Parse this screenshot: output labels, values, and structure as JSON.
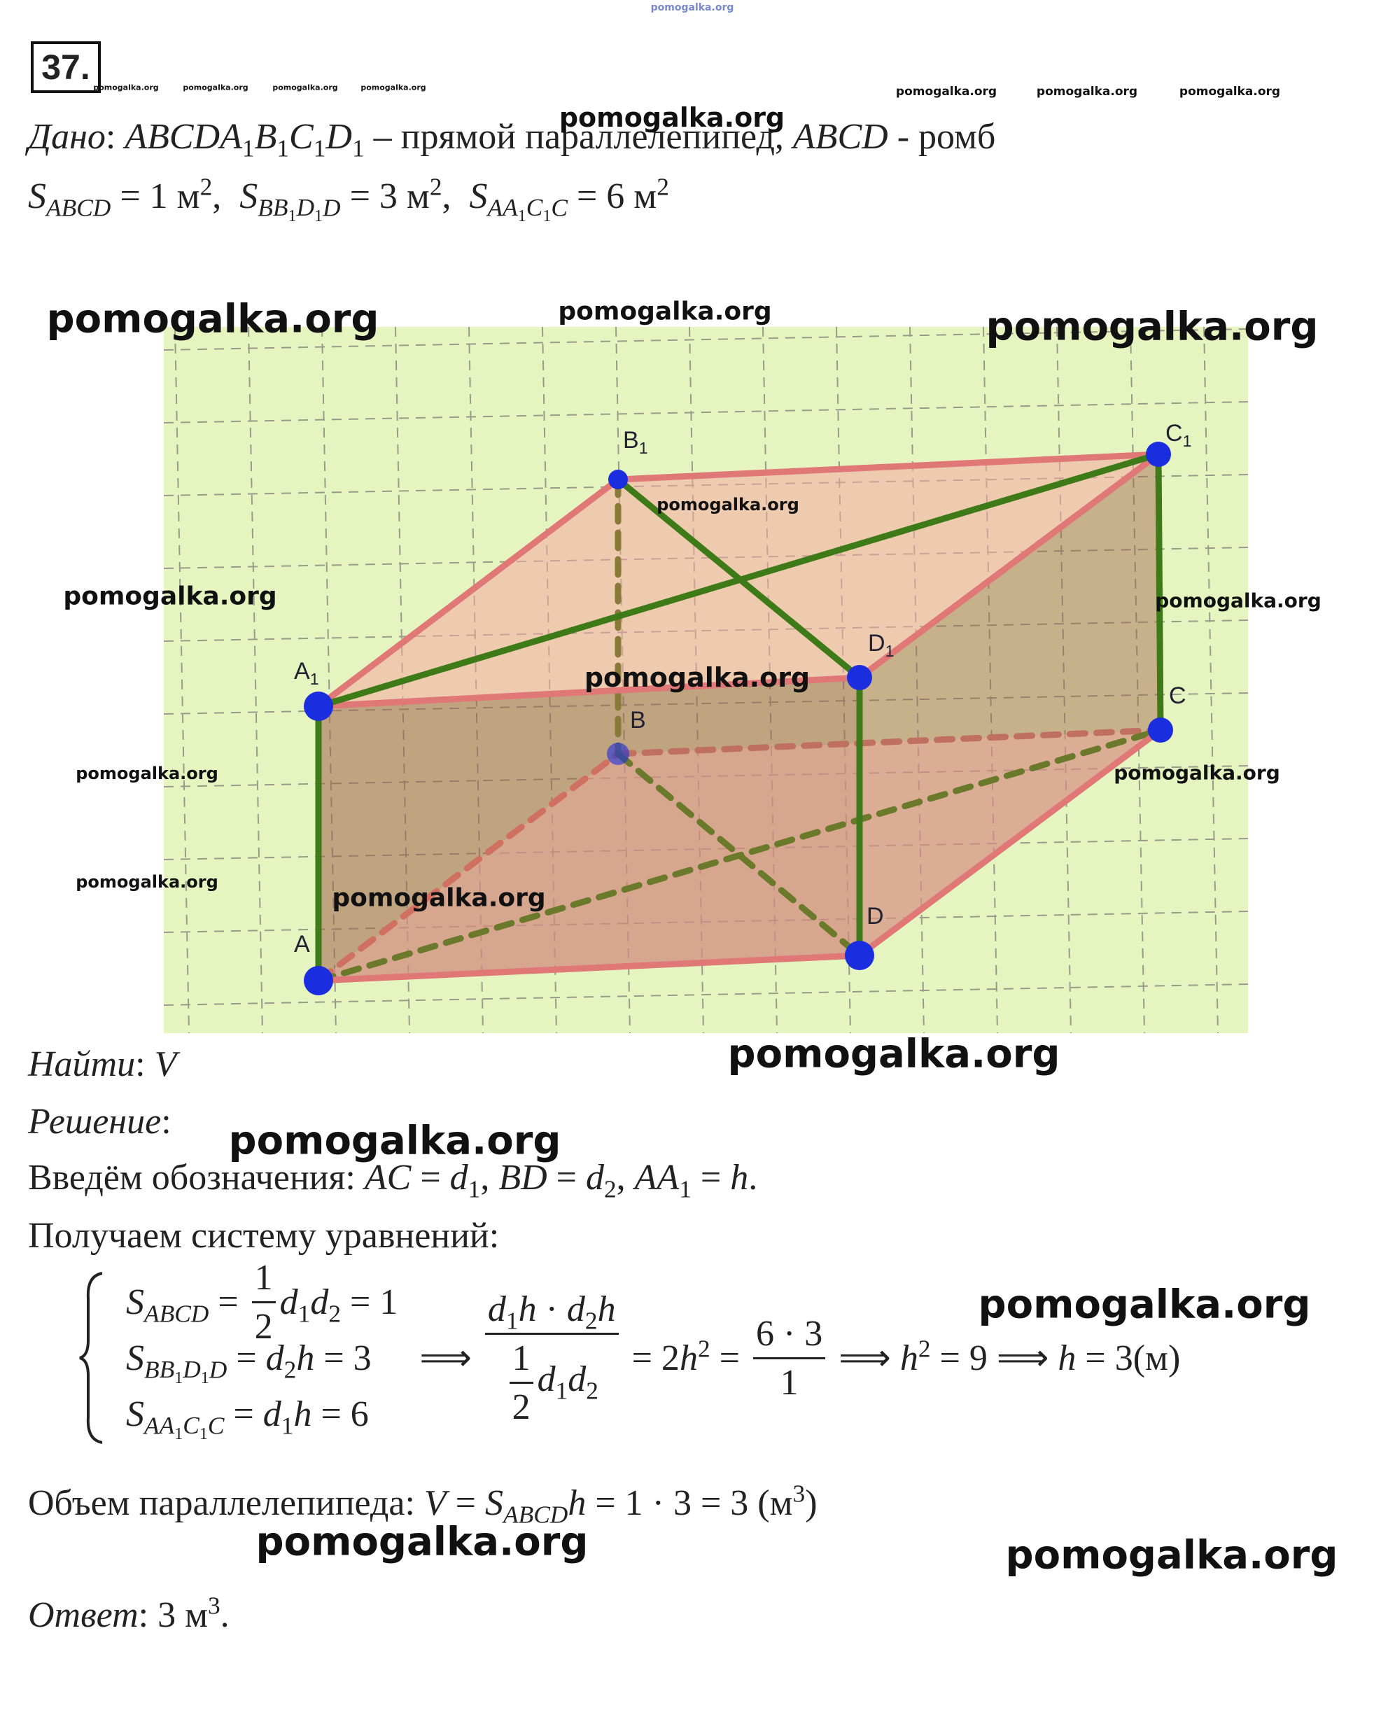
{
  "problem_number": "37.",
  "given": [
    [
      {
        "it": "Дано"
      },
      ": ",
      {
        "it": "ABCD"
      },
      {
        "it": "A",
        "sub": [
          "1"
        ]
      },
      {
        "it": "B",
        "sub": [
          "1"
        ]
      },
      {
        "it": "C",
        "sub": [
          "1"
        ]
      },
      {
        "it": "D",
        "sub": [
          "1"
        ]
      },
      " – прямой параллелепипед, ",
      {
        "it": "ABCD"
      },
      " - ромб"
    ],
    [
      {
        "it": "S",
        "sub": [
          {
            "it": "ABCD"
          }
        ]
      },
      " = 1 ",
      {
        "t": "м",
        "sup": [
          "2"
        ]
      },
      ",  ",
      {
        "it": "S",
        "sub": [
          {
            "it": "B"
          },
          {
            "it": "B",
            "sub": [
              "1"
            ]
          },
          {
            "it": "D",
            "sub": [
              "1"
            ]
          },
          {
            "it": "D"
          }
        ]
      },
      " = 3 ",
      {
        "t": "м",
        "sup": [
          "2"
        ]
      },
      ",  ",
      {
        "it": "S",
        "sub": [
          {
            "it": "A"
          },
          {
            "it": "A",
            "sub": [
              "1"
            ]
          },
          {
            "it": "C",
            "sub": [
              "1"
            ]
          },
          {
            "it": "C"
          }
        ]
      },
      " = 6 ",
      {
        "t": "м",
        "sup": [
          "2"
        ]
      }
    ]
  ],
  "figure_labels": [
    {
      "it": "A",
      "sub": [
        "1"
      ]
    },
    {
      "it": "B",
      "sub": [
        "1"
      ]
    },
    {
      "it": "C",
      "sub": [
        "1"
      ]
    },
    {
      "it": "D",
      "sub": [
        "1"
      ]
    },
    {
      "it": "A"
    },
    {
      "it": "B"
    },
    {
      "it": "C"
    },
    {
      "it": "D"
    }
  ],
  "find": [
    {
      "it": "Найти"
    },
    ": ",
    {
      "it": "V"
    }
  ],
  "solution_heading": [
    {
      "it": "Решение"
    },
    ":"
  ],
  "notation": [
    "Введём обозначения: ",
    {
      "it": "AC"
    },
    " = ",
    {
      "it": "d",
      "sub": [
        "1"
      ]
    },
    ", ",
    {
      "it": "BD"
    },
    " = ",
    {
      "it": "d",
      "sub": [
        "2"
      ]
    },
    ", ",
    {
      "it": "AA",
      "sub": [
        "1"
      ]
    },
    " = ",
    {
      "it": "h"
    },
    "."
  ],
  "system_intro": [
    "Получаем систему уравнений:"
  ],
  "system": [
    [
      {
        "it": "S",
        "sub": [
          {
            "it": "ABCD"
          }
        ]
      },
      " = ",
      {
        "num": [
          "1"
        ],
        "den": [
          "2"
        ]
      },
      {
        "it": "d",
        "sub": [
          "1"
        ]
      },
      {
        "it": "d",
        "sub": [
          "2"
        ]
      },
      " = 1"
    ],
    [
      {
        "it": "S",
        "sub": [
          {
            "it": "B"
          },
          {
            "it": "B",
            "sub": [
              "1"
            ]
          },
          {
            "it": "D",
            "sub": [
              "1"
            ]
          },
          {
            "it": "D"
          }
        ]
      },
      " = ",
      {
        "it": "d",
        "sub": [
          "2"
        ]
      },
      {
        "it": "h"
      },
      " = 3"
    ],
    [
      {
        "it": "S",
        "sub": [
          {
            "it": "A"
          },
          {
            "it": "A",
            "sub": [
              "1"
            ]
          },
          {
            "it": "C",
            "sub": [
              "1"
            ]
          },
          {
            "it": "C"
          }
        ]
      },
      " = ",
      {
        "it": "d",
        "sub": [
          "1"
        ]
      },
      {
        "it": "h"
      },
      " = 6"
    ]
  ],
  "derivation": [
    " ⟹ ",
    {
      "num": [
        {
          "it": "d",
          "sub": [
            "1"
          ]
        },
        {
          "it": "h"
        },
        " · ",
        {
          "it": "d",
          "sub": [
            "2"
          ]
        },
        {
          "it": "h"
        }
      ],
      "den": [
        {
          "num": [
            "1"
          ],
          "den": [
            "2"
          ]
        },
        {
          "it": "d",
          "sub": [
            "1"
          ]
        },
        {
          "it": "d",
          "sub": [
            "2"
          ]
        }
      ]
    },
    " = 2",
    {
      "it": "h",
      "sup": [
        "2"
      ]
    },
    " = ",
    {
      "num": [
        "6 · 3"
      ],
      "den": [
        "1"
      ]
    },
    " ⟹ ",
    {
      "it": "h",
      "sup": [
        "2"
      ]
    },
    " = 9 ⟹ ",
    {
      "it": "h"
    },
    " = 3(м)"
  ],
  "volume": [
    "Объем параллелепипеда: ",
    {
      "it": "V"
    },
    " = ",
    {
      "it": "S",
      "sub": [
        {
          "it": "ABCD"
        }
      ]
    },
    {
      "it": "h"
    },
    " = 1 · 3 = 3 (",
    {
      "t": "м",
      "sup": [
        "3"
      ]
    },
    ")"
  ],
  "answer": [
    {
      "it": "Ответ"
    },
    ": 3 ",
    {
      "t": "м",
      "sup": [
        "3"
      ]
    },
    "."
  ],
  "watermarks": [
    "pomogalka.org",
    "pomogalka.org",
    "pomogalka.org",
    "pomogalka.org",
    "pomogalka.org",
    "pomogalka.org",
    "pomogalka.org",
    "pomogalka.org",
    "pomogalka.org",
    "pomogalka.org",
    "pomogalka.org",
    "pomogalka.org",
    "pomogalka.org",
    "pomogalka.org",
    "pomogalka.org",
    "pomogalka.org",
    "pomogalka.org",
    "pomogalka.org",
    "pomogalka.org",
    "pomogalka.org",
    "pomogalka.org",
    "pomogalka.org",
    "pomogalka.org",
    "pomogalka.org",
    "pomogalka.org"
  ]
}
